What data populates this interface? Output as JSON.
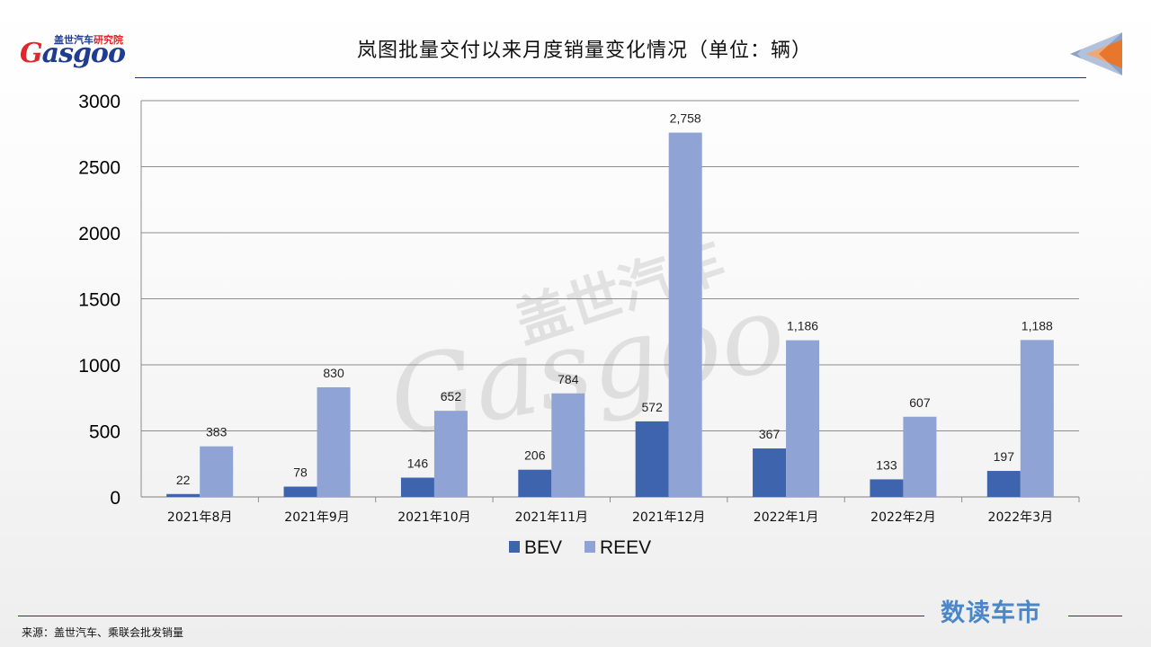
{
  "header": {
    "logo_cn": "盖世汽车",
    "logo_cn_accent": "研究院",
    "logo_word": "asgoo",
    "logo_word_initial": "G",
    "title": "岚图批量交付以来月度销量变化情况（单位：辆）"
  },
  "watermark": {
    "cn": "盖世汽车",
    "word": "Gasgoo"
  },
  "footer": {
    "brand": "数读车市",
    "source": "来源：盖世汽车、乘联会批发销量"
  },
  "colors": {
    "bev": "#3e64ad",
    "reev": "#8fa4d4",
    "title_rule": "#1f3864",
    "brand": "#4a86c8"
  },
  "chart_data": {
    "type": "bar",
    "categories": [
      "2021年8月",
      "2021年9月",
      "2021年10月",
      "2021年11月",
      "2021年12月",
      "2022年1月",
      "2022年2月",
      "2022年3月"
    ],
    "series": [
      {
        "name": "BEV",
        "values": [
          22,
          78,
          146,
          206,
          572,
          367,
          133,
          197
        ],
        "labels": [
          "22",
          "78",
          "146",
          "206",
          "572",
          "367",
          "133",
          "197"
        ]
      },
      {
        "name": "REEV",
        "values": [
          383,
          830,
          652,
          784,
          2758,
          1186,
          607,
          1188
        ],
        "labels": [
          "383",
          "830",
          "652",
          "784",
          "2,758",
          "1,186",
          "607",
          "1,188"
        ]
      }
    ],
    "title": "岚图批量交付以来月度销量变化情况（单位：辆）",
    "xlabel": "",
    "ylabel": "",
    "ylim": [
      0,
      3000
    ],
    "yticks": [
      0,
      500,
      1000,
      1500,
      2000,
      2500,
      3000
    ],
    "grid": true,
    "legend": "bottom"
  }
}
